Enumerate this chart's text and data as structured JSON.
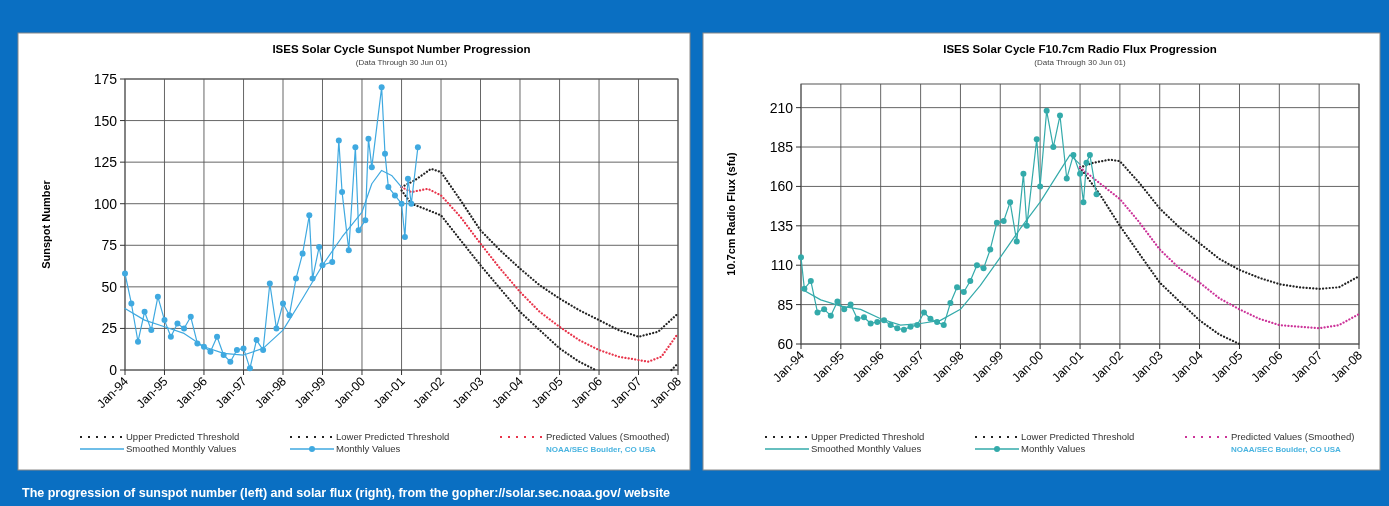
{
  "chart_data": [
    {
      "type": "line",
      "title": "ISES Solar Cycle Sunspot Number Progression",
      "subtitle": "(Data Through 30 Jun 01)",
      "ylabel": "Sunspot Number",
      "xlim": [
        "1994-01",
        "2008-01"
      ],
      "xticks": [
        {
          "value": "1994-01",
          "label": "Jan-94"
        },
        {
          "value": "1995-01",
          "label": "Jan-95"
        },
        {
          "value": "1996-01",
          "label": "Jan-96"
        },
        {
          "value": "1997-01",
          "label": "Jan-97"
        },
        {
          "value": "1998-01",
          "label": "Jan-98"
        },
        {
          "value": "1999-01",
          "label": "Jan-99"
        },
        {
          "value": "2000-01",
          "label": "Jan-00"
        },
        {
          "value": "2001-01",
          "label": "Jan-01"
        },
        {
          "value": "2002-01",
          "label": "Jan-02"
        },
        {
          "value": "2003-01",
          "label": "Jan-03"
        },
        {
          "value": "2004-01",
          "label": "Jan-04"
        },
        {
          "value": "2005-01",
          "label": "Jan-05"
        },
        {
          "value": "2006-01",
          "label": "Jan-06"
        },
        {
          "value": "2007-01",
          "label": "Jan-07"
        },
        {
          "value": "2008-01",
          "label": "Jan-08"
        }
      ],
      "ylim": [
        0,
        175
      ],
      "yticks": [
        0,
        25,
        50,
        75,
        100,
        125,
        150,
        175
      ],
      "grid": true,
      "legend": "bottom",
      "series": [
        {
          "name": "Upper Predicted Threshold",
          "color": "#222222",
          "line_style": "dotted",
          "x": [
            "2001-01",
            "2001-05",
            "2001-10",
            "2002-01",
            "2002-07",
            "2003-01",
            "2003-07",
            "2004-01",
            "2004-07",
            "2005-01",
            "2005-07",
            "2006-01",
            "2006-07",
            "2007-01",
            "2007-07",
            "2008-01"
          ],
          "values": [
            110,
            114,
            121,
            119,
            102,
            84,
            72,
            61,
            51,
            43,
            36,
            30,
            24,
            20,
            23,
            34
          ]
        },
        {
          "name": "Lower Predicted Threshold",
          "color": "#222222",
          "line_style": "dotted",
          "x": [
            "2001-01",
            "2001-04",
            "2001-08",
            "2002-01",
            "2002-07",
            "2003-01",
            "2003-07",
            "2004-01",
            "2004-07",
            "2005-01",
            "2005-07",
            "2005-12",
            "2007-06",
            "2007-11",
            "2008-01"
          ],
          "values": [
            108,
            100,
            97,
            93,
            78,
            63,
            49,
            35,
            24,
            13,
            5,
            0,
            null,
            0,
            4
          ]
        },
        {
          "name": "Predicted Values (Smoothed)",
          "color": "#e8344a",
          "line_style": "dotted",
          "x": [
            "2001-01",
            "2001-04",
            "2001-09",
            "2002-01",
            "2002-07",
            "2003-01",
            "2003-07",
            "2004-01",
            "2004-07",
            "2005-01",
            "2005-07",
            "2006-01",
            "2006-07",
            "2007-01",
            "2007-04",
            "2007-08",
            "2008-01"
          ],
          "values": [
            110,
            107,
            109,
            105,
            92,
            76,
            61,
            47,
            35,
            26,
            18,
            12,
            8,
            6,
            5,
            8,
            22
          ]
        },
        {
          "name": "Smoothed Monthly Values",
          "color": "#3fa9e0",
          "line_style": "solid",
          "x": [
            "1994-01",
            "1994-07",
            "1995-01",
            "1995-07",
            "1996-01",
            "1996-07",
            "1997-01",
            "1997-07",
            "1998-01",
            "1998-07",
            "1999-01",
            "1999-07",
            "2000-01",
            "2000-04",
            "2000-07",
            "2000-10",
            "2001-01"
          ],
          "values": [
            37,
            30,
            26,
            22,
            14,
            10,
            9,
            13,
            24,
            43,
            63,
            80,
            95,
            112,
            120,
            117,
            110
          ]
        },
        {
          "name": "Monthly Values",
          "color": "#3fa9e0",
          "line_style": "solid",
          "marker": "circle",
          "x": [
            "1994-01",
            "1994-03",
            "1994-05",
            "1994-07",
            "1994-09",
            "1994-11",
            "1995-01",
            "1995-03",
            "1995-05",
            "1995-07",
            "1995-09",
            "1995-11",
            "1996-01",
            "1996-03",
            "1996-05",
            "1996-07",
            "1996-09",
            "1996-11",
            "1997-01",
            "1997-03",
            "1997-05",
            "1997-07",
            "1997-09",
            "1997-11",
            "1998-01",
            "1998-03",
            "1998-05",
            "1998-07",
            "1998-09",
            "1998-10",
            "1998-12",
            "1999-01",
            "1999-04",
            "1999-06",
            "1999-07",
            "1999-09",
            "1999-11",
            "1999-12",
            "2000-02",
            "2000-03",
            "2000-04",
            "2000-07",
            "2000-08",
            "2000-09",
            "2000-11",
            "2001-01",
            "2001-02",
            "2001-03",
            "2001-04",
            "2001-06"
          ],
          "values": [
            58,
            40,
            17,
            35,
            24,
            44,
            30,
            20,
            28,
            25,
            32,
            16,
            14,
            11,
            20,
            9,
            5,
            12,
            13,
            1,
            18,
            12,
            52,
            25,
            40,
            33,
            55,
            70,
            93,
            55,
            74,
            63,
            65,
            138,
            107,
            72,
            134,
            84,
            90,
            139,
            122,
            170,
            130,
            110,
            105,
            100,
            80,
            115,
            100,
            134
          ]
        }
      ],
      "annotations": [
        "NOAA/SEC Boulder, CO USA",
        "The progression of sunspot number (left) and solar flux (right), from the gopher://solar.sec.noaa.gov/ website"
      ]
    },
    {
      "type": "line",
      "title": "ISES Solar Cycle F10.7cm Radio Flux Progression",
      "subtitle": "(Data Through 30 Jun 01)",
      "ylabel": "10.7cm Radio Flux (sfu)",
      "xlim": [
        "1994-01",
        "2008-01"
      ],
      "xticks": [
        {
          "value": "1994-01",
          "label": "Jan-94"
        },
        {
          "value": "1995-01",
          "label": "Jan-95"
        },
        {
          "value": "1996-01",
          "label": "Jan-96"
        },
        {
          "value": "1997-01",
          "label": "Jan-97"
        },
        {
          "value": "1998-01",
          "label": "Jan-98"
        },
        {
          "value": "1999-01",
          "label": "Jan-99"
        },
        {
          "value": "2000-01",
          "label": "Jan-00"
        },
        {
          "value": "2001-01",
          "label": "Jan-01"
        },
        {
          "value": "2002-01",
          "label": "Jan-02"
        },
        {
          "value": "2003-01",
          "label": "Jan-03"
        },
        {
          "value": "2004-01",
          "label": "Jan-04"
        },
        {
          "value": "2005-01",
          "label": "Jan-05"
        },
        {
          "value": "2006-01",
          "label": "Jan-06"
        },
        {
          "value": "2007-01",
          "label": "Jan-07"
        },
        {
          "value": "2008-01",
          "label": "Jan-08"
        }
      ],
      "ylim": [
        60,
        225
      ],
      "yticks": [
        60,
        85,
        110,
        135,
        160,
        185,
        210
      ],
      "grid": true,
      "legend": "bottom",
      "series": [
        {
          "name": "Upper Predicted Threshold",
          "color": "#222222",
          "line_style": "dotted",
          "x": [
            "2001-01",
            "2001-05",
            "2001-10",
            "2002-01",
            "2002-07",
            "2003-01",
            "2003-07",
            "2004-01",
            "2004-07",
            "2005-01",
            "2005-07",
            "2006-01",
            "2006-07",
            "2007-01",
            "2007-07",
            "2008-01"
          ],
          "values": [
            172,
            175,
            177,
            176,
            162,
            146,
            134,
            124,
            114,
            107,
            102,
            98,
            96,
            95,
            96,
            103
          ]
        },
        {
          "name": "Lower Predicted Threshold",
          "color": "#222222",
          "line_style": "dotted",
          "x": [
            "2001-01",
            "2001-07",
            "2002-01",
            "2002-07",
            "2003-01",
            "2003-07",
            "2004-01",
            "2004-07",
            "2005-01"
          ],
          "values": [
            172,
            155,
            135,
            117,
            99,
            87,
            75,
            66,
            60
          ]
        },
        {
          "name": "Predicted Values (Smoothed)",
          "color": "#cc3399",
          "line_style": "dotted",
          "x": [
            "2001-01",
            "2001-07",
            "2002-01",
            "2002-07",
            "2003-01",
            "2003-07",
            "2004-01",
            "2004-07",
            "2005-01",
            "2005-07",
            "2006-01",
            "2006-07",
            "2007-01",
            "2007-07",
            "2008-01"
          ],
          "values": [
            172,
            162,
            152,
            137,
            120,
            108,
            99,
            89,
            82,
            76,
            72,
            71,
            70,
            72,
            79
          ]
        },
        {
          "name": "Smoothed Monthly Values",
          "color": "#33aaaa",
          "line_style": "solid",
          "x": [
            "1994-01",
            "1994-07",
            "1995-01",
            "1995-07",
            "1996-01",
            "1996-07",
            "1997-01",
            "1997-07",
            "1998-01",
            "1998-07",
            "1999-01",
            "1999-07",
            "2000-01",
            "2000-07",
            "2000-10",
            "2001-01"
          ],
          "values": [
            95,
            88,
            84,
            82,
            76,
            72,
            73,
            75,
            82,
            97,
            115,
            133,
            150,
            170,
            180,
            174
          ]
        },
        {
          "name": "Monthly Values",
          "color": "#33aaaa",
          "line_style": "solid",
          "marker": "circle",
          "x": [
            "1994-01",
            "1994-02",
            "1994-04",
            "1994-06",
            "1994-08",
            "1994-10",
            "1994-12",
            "1995-02",
            "1995-04",
            "1995-06",
            "1995-08",
            "1995-10",
            "1995-12",
            "1996-02",
            "1996-04",
            "1996-06",
            "1996-08",
            "1996-10",
            "1996-12",
            "1997-02",
            "1997-04",
            "1997-06",
            "1997-08",
            "1997-10",
            "1997-12",
            "1998-02",
            "1998-04",
            "1998-06",
            "1998-08",
            "1998-10",
            "1998-12",
            "1999-02",
            "1999-04",
            "1999-06",
            "1999-08",
            "1999-09",
            "1999-12",
            "2000-01",
            "2000-03",
            "2000-05",
            "2000-07",
            "2000-09",
            "2000-11",
            "2001-01",
            "2001-02",
            "2001-03",
            "2001-04",
            "2001-06"
          ],
          "values": [
            115,
            95,
            100,
            80,
            82,
            78,
            87,
            82,
            85,
            76,
            77,
            73,
            74,
            75,
            72,
            70,
            69,
            71,
            72,
            80,
            76,
            74,
            72,
            86,
            96,
            93,
            100,
            110,
            108,
            120,
            137,
            138,
            150,
            125,
            168,
            135,
            190,
            160,
            208,
            185,
            205,
            165,
            180,
            168,
            150,
            175,
            180,
            155
          ]
        }
      ],
      "annotations": [
        "NOAA/SEC Boulder, CO USA"
      ]
    }
  ]
}
